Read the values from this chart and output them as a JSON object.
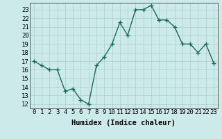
{
  "x": [
    0,
    1,
    2,
    3,
    4,
    5,
    6,
    7,
    8,
    9,
    10,
    11,
    12,
    13,
    14,
    15,
    16,
    17,
    18,
    19,
    20,
    21,
    22,
    23
  ],
  "y": [
    17.0,
    16.5,
    16.0,
    16.0,
    13.5,
    13.8,
    12.5,
    12.0,
    16.5,
    17.5,
    19.0,
    21.5,
    20.0,
    23.0,
    23.0,
    23.5,
    21.8,
    21.8,
    21.0,
    19.0,
    19.0,
    18.0,
    19.0,
    16.8
  ],
  "line_color": "#1a6b5a",
  "marker_color": "#1a6b5a",
  "bg_color": "#cceaea",
  "grid_color": "#aacece",
  "xlabel": "Humidex (Indice chaleur)",
  "ylim": [
    11.5,
    23.8
  ],
  "xlim": [
    -0.5,
    23.5
  ],
  "yticks": [
    12,
    13,
    14,
    15,
    16,
    17,
    18,
    19,
    20,
    21,
    22,
    23
  ],
  "xtick_labels": [
    "0",
    "1",
    "2",
    "3",
    "4",
    "5",
    "6",
    "7",
    "8",
    "9",
    "10",
    "11",
    "12",
    "13",
    "14",
    "15",
    "16",
    "17",
    "18",
    "19",
    "20",
    "21",
    "22",
    "23"
  ],
  "xlabel_fontsize": 7.5,
  "tick_fontsize": 6.5,
  "marker_size": 2.5,
  "line_width": 1.0
}
